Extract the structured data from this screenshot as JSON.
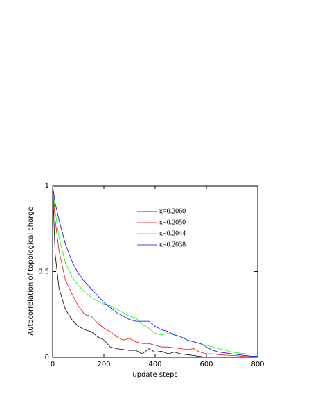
{
  "chart_data": {
    "type": "line",
    "xlabel": "update steps",
    "ylabel": "Autocorrelation of topological charge",
    "x": [
      0,
      10,
      25,
      50,
      75,
      100,
      125,
      150,
      175,
      200,
      225,
      250,
      275,
      300,
      325,
      350,
      375,
      400,
      425,
      450,
      475,
      500,
      525,
      550,
      575,
      600,
      625,
      650,
      675,
      700,
      725,
      750,
      775,
      800
    ],
    "series": [
      {
        "name": "κ=0.2060",
        "color": "#000000",
        "values": [
          1,
          0.6,
          0.4,
          0.28,
          0.22,
          0.18,
          0.16,
          0.15,
          0.12,
          0.1,
          0.06,
          0.05,
          0.045,
          0.04,
          0.04,
          0.02,
          0.05,
          0.03,
          0.035,
          0.02,
          0.03,
          0.02,
          0.015,
          0.01,
          0.005,
          0,
          null,
          null,
          null,
          null,
          null,
          null,
          null,
          null
        ]
      },
      {
        "name": "κ=0.2050",
        "color": "#ff0000",
        "values": [
          1,
          0.8,
          0.62,
          0.45,
          0.37,
          0.3,
          0.25,
          0.24,
          0.2,
          0.17,
          0.15,
          0.12,
          0.1,
          0.11,
          0.09,
          0.08,
          0.08,
          0.07,
          0.06,
          0.06,
          0.055,
          0.05,
          0.045,
          0.05,
          0.03,
          0.02,
          0.02,
          0.015,
          0.012,
          0.01,
          0.008,
          0.005,
          0.003,
          0
        ]
      },
      {
        "name": "κ=0.2044",
        "color": "#00ff00",
        "values": [
          1,
          0.85,
          0.7,
          0.55,
          0.47,
          0.42,
          0.38,
          0.35,
          0.33,
          0.31,
          0.3,
          0.28,
          0.26,
          0.24,
          0.23,
          0.19,
          0.17,
          0.14,
          0.13,
          0.14,
          0.13,
          0.12,
          0.1,
          0.09,
          0.08,
          0.07,
          0.06,
          0.05,
          0.04,
          0.03,
          0.025,
          0.02,
          0.02,
          0.015
        ]
      },
      {
        "name": "κ=0.2038",
        "color": "#0000ff",
        "values": [
          1,
          0.9,
          0.8,
          0.66,
          0.56,
          0.49,
          0.44,
          0.4,
          0.36,
          0.32,
          0.29,
          0.26,
          0.24,
          0.22,
          0.21,
          0.21,
          0.21,
          0.18,
          0.16,
          0.15,
          0.13,
          0.12,
          0.1,
          0.09,
          0.08,
          0.06,
          0.04,
          0.03,
          0.025,
          0.02,
          0.015,
          0.01,
          0.007,
          0.005
        ]
      }
    ],
    "xlim": [
      0,
      800
    ],
    "xticks": [
      0,
      200,
      400,
      600,
      800
    ],
    "ylim": [
      0,
      1
    ],
    "yticks": [
      0,
      0.5,
      1
    ]
  }
}
